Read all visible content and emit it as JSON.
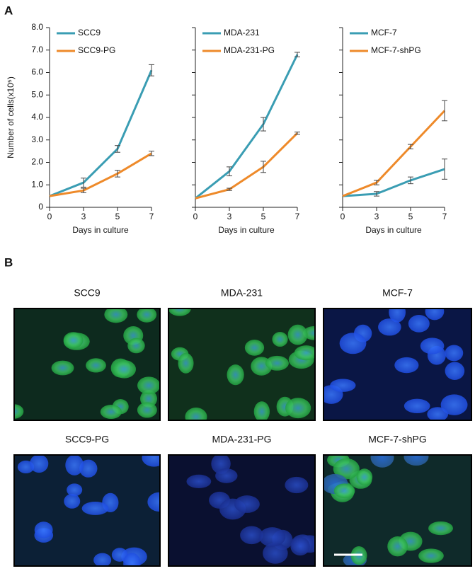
{
  "panel_labels": [
    "A",
    "B"
  ],
  "chart_data": [
    {
      "type": "line",
      "ylabel": "Number of cells(x10⁵)",
      "xlabel": "Days in culture",
      "categories": [
        "0",
        "3",
        "5",
        "7"
      ],
      "ylim": [
        0,
        8
      ],
      "yticks": [
        0,
        {
          "value": 1,
          "label": "1.0"
        },
        {
          "value": 2,
          "label": "2.0"
        },
        {
          "value": 3,
          "label": "3.0"
        },
        {
          "value": 4,
          "label": "4.0"
        },
        {
          "value": 5,
          "label": "5.0"
        },
        {
          "value": 6,
          "label": "6.0"
        },
        {
          "value": 7,
          "label": "7.0"
        },
        {
          "value": 8,
          "label": "8.0"
        }
      ],
      "ytick_labels": true,
      "legend": "upper left",
      "series": [
        {
          "name": "SCC9",
          "color": "#3a9db3",
          "values": [
            0.5,
            1.1,
            2.6,
            6.1
          ],
          "errors": [
            null,
            0.2,
            0.15,
            0.25
          ]
        },
        {
          "name": "SCC9-PG",
          "color": "#ee8a2a",
          "values": [
            0.5,
            0.75,
            1.5,
            2.4
          ],
          "errors": [
            null,
            0.1,
            0.15,
            0.1
          ]
        }
      ]
    },
    {
      "type": "line",
      "xlabel": "Days in culture",
      "categories": [
        "0",
        "3",
        "5",
        "7"
      ],
      "ylim": [
        0,
        8
      ],
      "yticks": [
        0,
        1,
        2,
        3,
        4,
        5,
        6,
        7,
        8
      ],
      "ytick_labels": false,
      "legend": "upper left",
      "series": [
        {
          "name": "MDA-231",
          "color": "#3a9db3",
          "values": [
            0.4,
            1.6,
            3.7,
            6.8
          ],
          "errors": [
            null,
            0.2,
            0.3,
            0.1
          ]
        },
        {
          "name": "MDA-231-PG",
          "color": "#ee8a2a",
          "values": [
            0.4,
            0.8,
            1.8,
            3.3
          ],
          "errors": [
            null,
            0.05,
            0.25,
            0.05
          ]
        }
      ]
    },
    {
      "type": "line",
      "xlabel": "Days in culture",
      "categories": [
        "0",
        "3",
        "5",
        "7"
      ],
      "ylim": [
        0,
        8
      ],
      "yticks": [
        0,
        1,
        2,
        3,
        4,
        5,
        6,
        7,
        8
      ],
      "ytick_labels": false,
      "legend": "upper left",
      "series": [
        {
          "name": "MCF-7",
          "color": "#3a9db3",
          "values": [
            0.5,
            0.6,
            1.2,
            1.7
          ],
          "errors": [
            null,
            0.1,
            0.15,
            0.45
          ]
        },
        {
          "name": "MCF-7-shPG",
          "color": "#ee8a2a",
          "values": [
            0.5,
            1.1,
            2.7,
            4.3
          ],
          "errors": [
            null,
            0.1,
            0.1,
            0.45
          ]
        }
      ]
    }
  ],
  "images": [
    {
      "label": "SCC9"
    },
    {
      "label": "MDA-231"
    },
    {
      "label": "MCF-7"
    },
    {
      "label": "SCC9-PG"
    },
    {
      "label": "MDA-231-PG"
    },
    {
      "label": "MCF-7-shPG"
    }
  ]
}
